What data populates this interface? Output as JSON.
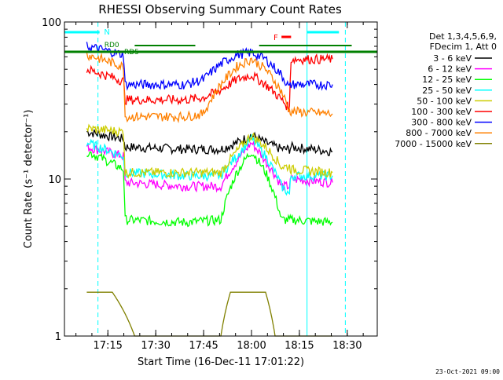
{
  "chart_data": {
    "type": "line",
    "title": "RHESSI Observing Summary Count Rates",
    "xlabel": "Start Time (16-Dec-11 17:01:22)",
    "ylabel": "Count Rate (s⁻¹ detector⁻¹)",
    "yscale": "log",
    "ylim": [
      1,
      100
    ],
    "xlim_minutes": [
      0,
      98
    ],
    "x_ticks": [
      {
        "label": "17:15",
        "minute": 13.6
      },
      {
        "label": "17:30",
        "minute": 28.6
      },
      {
        "label": "17:45",
        "minute": 43.6
      },
      {
        "label": "18:00",
        "minute": 58.6
      },
      {
        "label": "18:15",
        "minute": 73.6
      },
      {
        "label": "18:30",
        "minute": 88.6
      }
    ],
    "y_tick_labels": [
      "1",
      "10",
      "100"
    ],
    "legend_header": [
      "Det 1,3,4,5,6,9,",
      "FDecim 1, Att 0"
    ],
    "legend_placement": "right",
    "annotations": [
      "RD0",
      "RD5",
      "N",
      "F"
    ],
    "footer": "23-Oct-2021 09:00",
    "series": [
      {
        "name": "3 - 6 keV",
        "color": "#000000",
        "x": [
          7,
          18.5,
          19,
          38,
          49,
          54,
          58.6,
          63,
          68,
          70.5,
          71,
          84
        ],
        "y": [
          20,
          18,
          16,
          15.5,
          15.5,
          17,
          19,
          17,
          15.5,
          15.5,
          16,
          15
        ]
      },
      {
        "name": "6 - 12 keV",
        "color": "#ff00ff",
        "x": [
          7,
          18.5,
          19,
          38,
          49,
          54,
          58.6,
          63,
          68,
          70.5,
          71,
          84
        ],
        "y": [
          16,
          14,
          9.5,
          9,
          9,
          13,
          17,
          13,
          9,
          9,
          10,
          9.5
        ]
      },
      {
        "name": "12 - 25 keV",
        "color": "#00ff00",
        "x": [
          7,
          18.5,
          19,
          38,
          49,
          54,
          58.6,
          63,
          68,
          70.5,
          71,
          84
        ],
        "y": [
          15,
          11.5,
          5.5,
          5.3,
          5.5,
          11,
          15,
          11,
          5.5,
          5.5,
          5.5,
          5.3
        ]
      },
      {
        "name": "25 - 50 keV",
        "color": "#00ffff",
        "x": [
          7,
          18.5,
          19,
          38,
          49,
          54,
          58.6,
          63,
          68,
          70.5,
          71,
          84
        ],
        "y": [
          17,
          14,
          11,
          10.5,
          10.5,
          14,
          18,
          14,
          9,
          8,
          10.5,
          10.5
        ]
      },
      {
        "name": "50 - 100 keV",
        "color": "#cccc00",
        "x": [
          7,
          18.5,
          19,
          38,
          49,
          54,
          58.6,
          63,
          68,
          70.5,
          71,
          84
        ],
        "y": [
          21,
          20,
          11,
          11,
          11,
          15,
          19,
          16,
          12,
          12,
          11.5,
          11
        ]
      },
      {
        "name": "100 - 300 keV",
        "color": "#ff0000",
        "x": [
          7,
          18.5,
          19,
          38,
          43.5,
          49,
          54,
          58.6,
          63,
          68,
          70.5,
          71,
          84
        ],
        "y": [
          50,
          42,
          32,
          32,
          33,
          37,
          43,
          46,
          40,
          32,
          28,
          58,
          58
        ]
      },
      {
        "name": "300 - 800 keV",
        "color": "#0000ff",
        "x": [
          7,
          18.5,
          19,
          38,
          43.5,
          49,
          54,
          58.6,
          63,
          68,
          70.5,
          71,
          84
        ],
        "y": [
          70,
          62,
          40,
          40,
          43,
          54,
          62,
          64,
          58,
          46,
          38,
          40,
          40
        ]
      },
      {
        "name": "800 - 7000 keV",
        "color": "#ff8000",
        "x": [
          7,
          18.5,
          19,
          38,
          43.5,
          49,
          54,
          58.6,
          63,
          68,
          70.5,
          71,
          84
        ],
        "y": [
          62,
          52,
          25,
          25,
          26,
          40,
          52,
          58,
          50,
          36,
          27,
          27,
          26
        ]
      },
      {
        "name": "7000 - 15000 keV",
        "color": "#808000",
        "x": [
          7,
          11,
          15,
          22,
          49,
          52,
          56,
          60,
          63,
          66,
          84
        ],
        "y": [
          1.9,
          1.9,
          1.9,
          1,
          1,
          1.9,
          1.9,
          1.9,
          1.9,
          1,
          1
        ]
      }
    ]
  }
}
